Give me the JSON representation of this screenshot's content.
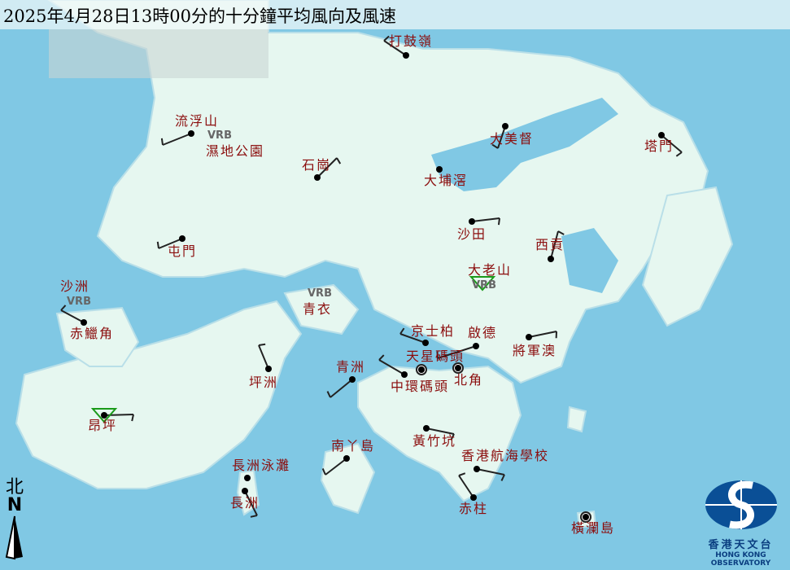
{
  "title": "2025年4月28日13時00分的十分鐘平均風向及風速",
  "colors": {
    "sea": "#80c8e4",
    "land": "#e6f7f0",
    "label": "#8b0d0d",
    "calm_marker": "#1a9a1a"
  },
  "stations": [
    {
      "name": "打鼓嶺",
      "marker": "dot"
    },
    {
      "name": "流浮山",
      "marker": "dot"
    },
    {
      "name": "濕地公園",
      "marker": "none",
      "vrb": "VRB"
    },
    {
      "name": "石崗",
      "marker": "dot"
    },
    {
      "name": "大美督",
      "marker": "dot"
    },
    {
      "name": "塔門",
      "marker": "dot"
    },
    {
      "name": "大埔滘",
      "marker": "dot"
    },
    {
      "name": "沙田",
      "marker": "dot"
    },
    {
      "name": "屯門",
      "marker": "dot"
    },
    {
      "name": "西貢",
      "marker": "dot"
    },
    {
      "name": "大老山",
      "marker": "triangle",
      "vrb": "VRB"
    },
    {
      "name": "沙洲",
      "marker": "none",
      "vrb": "VRB"
    },
    {
      "name": "赤鱲角",
      "marker": "dot"
    },
    {
      "name": "青衣",
      "marker": "none",
      "vrb": "VRB"
    },
    {
      "name": "京士柏",
      "marker": "dot"
    },
    {
      "name": "啟德",
      "marker": "dot"
    },
    {
      "name": "將軍澳",
      "marker": "dot"
    },
    {
      "name": "天星碼頭",
      "marker": "circle"
    },
    {
      "name": "北角",
      "marker": "circle"
    },
    {
      "name": "中環碼頭",
      "marker": "dot"
    },
    {
      "name": "坪洲",
      "marker": "dot"
    },
    {
      "name": "青洲",
      "marker": "dot"
    },
    {
      "name": "昂坪",
      "marker": "triangle-dot"
    },
    {
      "name": "黃竹坑",
      "marker": "dot"
    },
    {
      "name": "南丫島",
      "marker": "dot"
    },
    {
      "name": "香港航海學校",
      "marker": "dot"
    },
    {
      "name": "長洲泳灘",
      "marker": "dot"
    },
    {
      "name": "長洲",
      "marker": "dot"
    },
    {
      "name": "赤柱",
      "marker": "dot"
    },
    {
      "name": "橫瀾島",
      "marker": "circle"
    }
  ],
  "north_arrow": {
    "zh": "北",
    "en": "N"
  },
  "logo": {
    "zh": "香港天文台",
    "en": "HONG KONG OBSERVATORY"
  }
}
